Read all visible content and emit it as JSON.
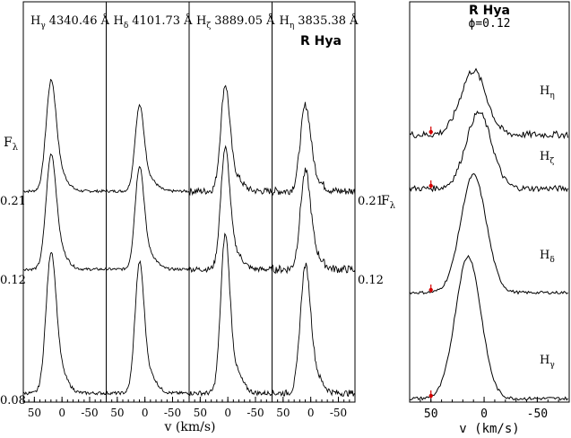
{
  "figure": {
    "left_panel": {
      "star_label": "R Hya",
      "y_axis_label": "F",
      "y_axis_label_sub": "λ",
      "y_axis_label_right": "F",
      "y_axis_label_right_sub": "λ",
      "x_axis_label": "v (km/s)",
      "phase_labels_left": [
        "0.21",
        "0.12",
        "0.08"
      ],
      "phase_labels_right": [
        "0.21",
        "0.12"
      ]
    },
    "right_panel": {
      "title": "R Hya",
      "phase_text": "ϕ=0.12",
      "x_axis_label": "v (km/s)"
    }
  },
  "chart_data": [
    {
      "type": "line",
      "description_source": "left multi-panel: Balmer line profiles at three phases",
      "xlabel": "v (km/s)",
      "xlim": [
        70,
        -80
      ],
      "x_ticks": [
        50,
        0,
        -50
      ],
      "subpanels": [
        {
          "line": "H",
          "sub": "γ",
          "wavelength": "4340.46 Å"
        },
        {
          "line": "H",
          "sub": "δ",
          "wavelength": "4101.73 Å"
        },
        {
          "line": "H",
          "sub": "ζ",
          "wavelength": "3889.05 Å"
        },
        {
          "line": "H",
          "sub": "η",
          "wavelength": "3835.38 Å"
        }
      ],
      "phases": [
        "0.21",
        "0.12",
        "0.08"
      ],
      "peak_velocity": [
        20,
        10,
        5,
        10
      ],
      "peak_width": [
        9,
        8,
        8,
        9
      ],
      "series": [
        {
          "phase": "0.21",
          "peak_heights": [
            0.75,
            0.58,
            0.72,
            0.58
          ],
          "noise": [
            0.02,
            0.02,
            0.05,
            0.06
          ]
        },
        {
          "phase": "0.12",
          "peak_heights": [
            0.78,
            0.7,
            0.82,
            0.66
          ],
          "noise": [
            0.02,
            0.02,
            0.04,
            0.06
          ]
        },
        {
          "phase": "0.08",
          "peak_heights": [
            0.82,
            0.76,
            0.92,
            0.74
          ],
          "noise": [
            0.02,
            0.02,
            0.03,
            0.04
          ]
        }
      ]
    },
    {
      "type": "line",
      "description_source": "right panel: R Hya Balmer profiles at phase 0.12",
      "title": "R Hya",
      "xlabel": "v (km/s)",
      "xlim": [
        70,
        -80
      ],
      "x_ticks": [
        50,
        0,
        -50
      ],
      "series": [
        {
          "line": "H",
          "sub": "η",
          "peak_velocity": 10,
          "peak_height": 0.55,
          "noise": 0.06,
          "marker_velocity": 50
        },
        {
          "line": "H",
          "sub": "ζ",
          "peak_velocity": 5,
          "peak_height": 0.65,
          "noise": 0.05,
          "marker_velocity": 50
        },
        {
          "line": "H",
          "sub": "δ",
          "peak_velocity": 10,
          "peak_height": 0.82,
          "noise": 0.02,
          "marker_velocity": 50
        },
        {
          "line": "H",
          "sub": "γ",
          "peak_velocity": 15,
          "peak_height": 0.88,
          "noise": 0.02,
          "marker_velocity": 50
        }
      ],
      "marker_color": "#d40000"
    }
  ]
}
